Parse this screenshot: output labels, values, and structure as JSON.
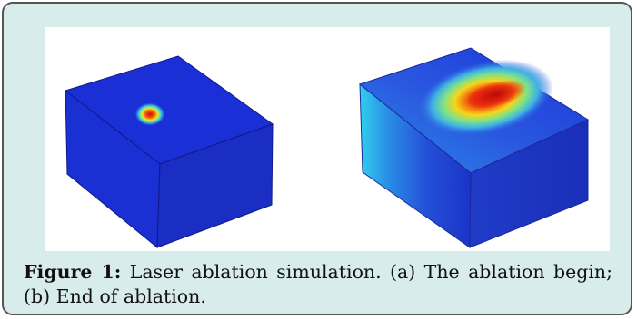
{
  "figure": {
    "label": "Figure 1:",
    "caption": " Laser ablation simulation. (a) The ablation begin; (b) End of ablation.",
    "panels": [
      {
        "id": "a",
        "description_name": "ablation-begin-block"
      },
      {
        "id": "b",
        "description_name": "ablation-end-block"
      }
    ]
  },
  "colors": {
    "frame_background": "#d9ecec",
    "frame_border": "#555555",
    "block_blue": "#1a2fd6",
    "block_blue_dark": "#0f1c9a",
    "hot_red": "#e0140a",
    "hot_yellow": "#f4ee1a",
    "cool_cyan": "#38d8f0"
  }
}
